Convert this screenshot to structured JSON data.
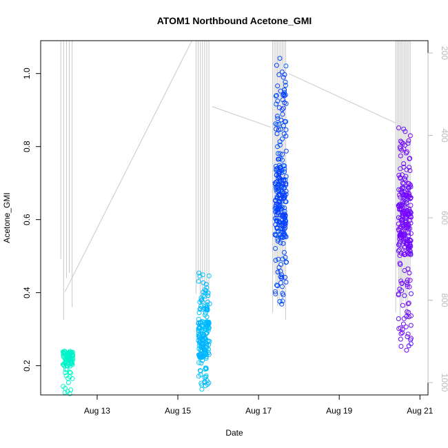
{
  "chart_data": {
    "type": "scatter",
    "title": "ATOM1 Northbound Acetone_GMI",
    "xlabel": "Date",
    "ylabel": "Acetone_GMI",
    "x_ticks": [
      "Aug 13",
      "Aug 15",
      "Aug 17",
      "Aug 19",
      "Aug 21"
    ],
    "x_tick_days": [
      13,
      15,
      17,
      19,
      21
    ],
    "xlim_days": [
      11.6,
      21.2
    ],
    "ylim": [
      0.12,
      1.09
    ],
    "y_ticks": [
      0.2,
      0.4,
      0.6,
      0.8,
      1.0
    ],
    "y2_ticks": [
      200,
      400,
      600,
      800,
      1000
    ],
    "y2_range": [
      1030,
      170
    ],
    "point_color_scale": [
      "#00ffbf",
      "#00bfff",
      "#0040ff",
      "#8000ff"
    ],
    "profile_color": "#c8c8c8",
    "clusters": [
      {
        "day_start": 12.1,
        "day_end": 12.45,
        "y_min": 0.12,
        "y_max": 0.245,
        "count": 90,
        "color_t": [
          0.0,
          0.08
        ],
        "dense_band": [
          0.2,
          0.24
        ]
      },
      {
        "day_start": 15.45,
        "day_end": 15.85,
        "y_min": 0.135,
        "y_max": 0.46,
        "count": 200,
        "color_t": [
          0.28,
          0.38
        ],
        "dense_band": [
          0.22,
          0.32
        ]
      },
      {
        "day_start": 17.35,
        "day_end": 17.75,
        "y_min": 0.35,
        "y_max": 1.05,
        "count": 260,
        "color_t": [
          0.6,
          0.7
        ],
        "dense_band": [
          0.55,
          0.75
        ]
      },
      {
        "day_start": 20.4,
        "day_end": 20.85,
        "y_min": 0.24,
        "y_max": 0.86,
        "count": 260,
        "color_t": [
          0.9,
          1.0
        ],
        "dense_band": [
          0.5,
          0.7
        ]
      }
    ]
  }
}
